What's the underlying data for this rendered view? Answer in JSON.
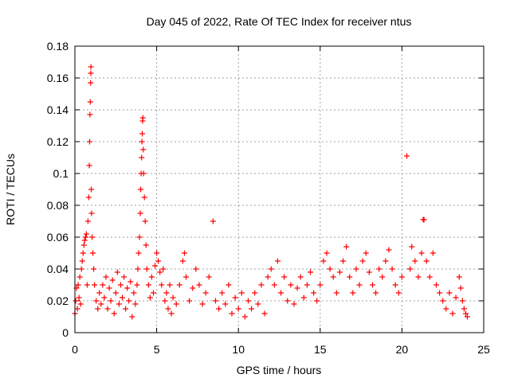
{
  "chart_data": {
    "type": "scatter",
    "title": "Day 045 of 2022, Rate Of TEC Index for receiver ntus",
    "xlabel": "GPS time / hours",
    "ylabel": "ROTI / TECUs",
    "xlim": [
      0,
      25
    ],
    "ylim": [
      0,
      0.18
    ],
    "xticks": [
      0,
      5,
      10,
      15,
      20,
      25
    ],
    "yticks": [
      0,
      0.02,
      0.04,
      0.06,
      0.08,
      0.1,
      0.12,
      0.14,
      0.16,
      0.18
    ],
    "xtick_labels": [
      "0",
      "5",
      "10",
      "15",
      "20",
      "25"
    ],
    "ytick_labels": [
      "0",
      "0.02",
      "0.04",
      "0.06",
      "0.08",
      "0.1",
      "0.12",
      "0.14",
      "0.16",
      "0.18"
    ],
    "grid": true,
    "marker": "+",
    "series": [
      {
        "color": "#ff0000",
        "points": [
          [
            0.0,
            0.012
          ],
          [
            0.05,
            0.02
          ],
          [
            0.1,
            0.028
          ],
          [
            0.15,
            0.015
          ],
          [
            0.2,
            0.03
          ],
          [
            0.25,
            0.022
          ],
          [
            0.3,
            0.035
          ],
          [
            0.35,
            0.018
          ],
          [
            0.4,
            0.04
          ],
          [
            0.45,
            0.045
          ],
          [
            0.5,
            0.05
          ],
          [
            0.55,
            0.055
          ],
          [
            0.6,
            0.058
          ],
          [
            0.65,
            0.06
          ],
          [
            0.7,
            0.062
          ],
          [
            0.75,
            0.03
          ],
          [
            0.8,
            0.07
          ],
          [
            0.85,
            0.085
          ],
          [
            0.88,
            0.105
          ],
          [
            0.9,
            0.12
          ],
          [
            0.92,
            0.137
          ],
          [
            0.94,
            0.145
          ],
          [
            0.96,
            0.157
          ],
          [
            0.97,
            0.163
          ],
          [
            0.98,
            0.167
          ],
          [
            1.0,
            0.09
          ],
          [
            1.02,
            0.075
          ],
          [
            1.05,
            0.06
          ],
          [
            1.1,
            0.05
          ],
          [
            1.15,
            0.04
          ],
          [
            1.2,
            0.03
          ],
          [
            1.3,
            0.02
          ],
          [
            1.4,
            0.015
          ],
          [
            1.5,
            0.025
          ],
          [
            1.6,
            0.018
          ],
          [
            1.7,
            0.03
          ],
          [
            1.8,
            0.022
          ],
          [
            1.9,
            0.035
          ],
          [
            2.0,
            0.015
          ],
          [
            2.1,
            0.028
          ],
          [
            2.2,
            0.02
          ],
          [
            2.3,
            0.033
          ],
          [
            2.4,
            0.012
          ],
          [
            2.5,
            0.025
          ],
          [
            2.6,
            0.038
          ],
          [
            2.7,
            0.018
          ],
          [
            2.8,
            0.03
          ],
          [
            2.9,
            0.022
          ],
          [
            3.0,
            0.035
          ],
          [
            3.1,
            0.015
          ],
          [
            3.2,
            0.028
          ],
          [
            3.3,
            0.02
          ],
          [
            3.4,
            0.032
          ],
          [
            3.5,
            0.01
          ],
          [
            3.6,
            0.025
          ],
          [
            3.7,
            0.018
          ],
          [
            3.8,
            0.03
          ],
          [
            3.85,
            0.04
          ],
          [
            3.9,
            0.05
          ],
          [
            3.95,
            0.06
          ],
          [
            4.0,
            0.075
          ],
          [
            4.02,
            0.09
          ],
          [
            4.05,
            0.1
          ],
          [
            4.08,
            0.11
          ],
          [
            4.1,
            0.12
          ],
          [
            4.12,
            0.125
          ],
          [
            4.14,
            0.133
          ],
          [
            4.16,
            0.135
          ],
          [
            4.18,
            0.115
          ],
          [
            4.2,
            0.1
          ],
          [
            4.25,
            0.085
          ],
          [
            4.3,
            0.07
          ],
          [
            4.35,
            0.055
          ],
          [
            4.4,
            0.04
          ],
          [
            4.5,
            0.03
          ],
          [
            4.6,
            0.022
          ],
          [
            4.7,
            0.035
          ],
          [
            4.8,
            0.025
          ],
          [
            4.9,
            0.042
          ],
          [
            5.0,
            0.05
          ],
          [
            5.1,
            0.045
          ],
          [
            5.2,
            0.038
          ],
          [
            5.3,
            0.03
          ],
          [
            5.4,
            0.04
          ],
          [
            5.5,
            0.02
          ],
          [
            5.6,
            0.025
          ],
          [
            5.7,
            0.015
          ],
          [
            5.8,
            0.03
          ],
          [
            5.9,
            0.012
          ],
          [
            6.0,
            0.022
          ],
          [
            6.2,
            0.018
          ],
          [
            6.4,
            0.03
          ],
          [
            6.6,
            0.045
          ],
          [
            6.7,
            0.05
          ],
          [
            6.8,
            0.035
          ],
          [
            7.0,
            0.02
          ],
          [
            7.2,
            0.028
          ],
          [
            7.4,
            0.04
          ],
          [
            7.6,
            0.03
          ],
          [
            7.8,
            0.018
          ],
          [
            8.0,
            0.025
          ],
          [
            8.2,
            0.035
          ],
          [
            8.45,
            0.07
          ],
          [
            8.6,
            0.02
          ],
          [
            8.8,
            0.015
          ],
          [
            9.0,
            0.025
          ],
          [
            9.2,
            0.018
          ],
          [
            9.4,
            0.03
          ],
          [
            9.6,
            0.012
          ],
          [
            9.8,
            0.022
          ],
          [
            10.0,
            0.015
          ],
          [
            10.2,
            0.025
          ],
          [
            10.4,
            0.01
          ],
          [
            10.6,
            0.02
          ],
          [
            10.8,
            0.015
          ],
          [
            11.0,
            0.025
          ],
          [
            11.2,
            0.018
          ],
          [
            11.4,
            0.03
          ],
          [
            11.6,
            0.012
          ],
          [
            11.8,
            0.035
          ],
          [
            12.0,
            0.04
          ],
          [
            12.2,
            0.03
          ],
          [
            12.4,
            0.045
          ],
          [
            12.6,
            0.025
          ],
          [
            12.8,
            0.035
          ],
          [
            13.0,
            0.02
          ],
          [
            13.2,
            0.03
          ],
          [
            13.4,
            0.018
          ],
          [
            13.6,
            0.028
          ],
          [
            13.8,
            0.035
          ],
          [
            14.0,
            0.022
          ],
          [
            14.2,
            0.03
          ],
          [
            14.4,
            0.038
          ],
          [
            14.6,
            0.025
          ],
          [
            14.8,
            0.02
          ],
          [
            15.0,
            0.03
          ],
          [
            15.2,
            0.045
          ],
          [
            15.4,
            0.05
          ],
          [
            15.6,
            0.04
          ],
          [
            15.8,
            0.035
          ],
          [
            16.0,
            0.025
          ],
          [
            16.2,
            0.038
          ],
          [
            16.4,
            0.045
          ],
          [
            16.6,
            0.054
          ],
          [
            16.8,
            0.035
          ],
          [
            17.0,
            0.025
          ],
          [
            17.2,
            0.04
          ],
          [
            17.4,
            0.03
          ],
          [
            17.6,
            0.045
          ],
          [
            17.8,
            0.05
          ],
          [
            18.0,
            0.038
          ],
          [
            18.2,
            0.03
          ],
          [
            18.4,
            0.025
          ],
          [
            18.6,
            0.04
          ],
          [
            18.8,
            0.035
          ],
          [
            19.0,
            0.045
          ],
          [
            19.2,
            0.052
          ],
          [
            19.4,
            0.04
          ],
          [
            19.6,
            0.03
          ],
          [
            19.8,
            0.025
          ],
          [
            20.0,
            0.035
          ],
          [
            20.3,
            0.111
          ],
          [
            20.5,
            0.04
          ],
          [
            20.6,
            0.054
          ],
          [
            20.8,
            0.045
          ],
          [
            21.0,
            0.035
          ],
          [
            21.2,
            0.05
          ],
          [
            21.3,
            0.071
          ],
          [
            21.35,
            0.071
          ],
          [
            21.5,
            0.045
          ],
          [
            21.7,
            0.035
          ],
          [
            21.9,
            0.05
          ],
          [
            22.1,
            0.03
          ],
          [
            22.3,
            0.025
          ],
          [
            22.5,
            0.02
          ],
          [
            22.7,
            0.015
          ],
          [
            22.9,
            0.025
          ],
          [
            23.1,
            0.012
          ],
          [
            23.3,
            0.022
          ],
          [
            23.5,
            0.035
          ],
          [
            23.6,
            0.028
          ],
          [
            23.7,
            0.02
          ],
          [
            23.8,
            0.015
          ],
          [
            23.9,
            0.012
          ],
          [
            24.0,
            0.01
          ]
        ]
      }
    ]
  }
}
